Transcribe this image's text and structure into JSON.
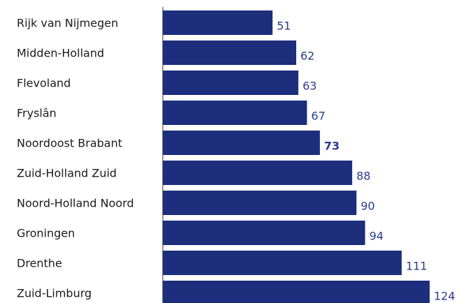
{
  "chart_data": {
    "type": "bar",
    "orientation": "horizontal",
    "categories": [
      "Rijk van Nijmegen",
      "Midden-Holland",
      "Flevoland",
      "Fryslân",
      "Noordoost Brabant",
      "Zuid-Holland Zuid",
      "Noord-Holland Noord",
      "Groningen",
      "Drenthe",
      "Zuid-Limburg"
    ],
    "values": [
      51,
      62,
      63,
      67,
      73,
      88,
      90,
      94,
      111,
      124
    ],
    "value_labels": [
      "51",
      "62",
      "63",
      "67",
      "73",
      "88",
      "90",
      "94",
      "111",
      "124"
    ],
    "xlim": [
      0,
      124
    ],
    "grid": false,
    "legend": "none",
    "colors": {
      "bar": "#1c2e7c",
      "value_text": "#2b3a8f",
      "value_text_highlight": "#1c2e7c",
      "category_text": "#1a1a1a",
      "axis": "#333333"
    },
    "highlight_index": 4
  }
}
